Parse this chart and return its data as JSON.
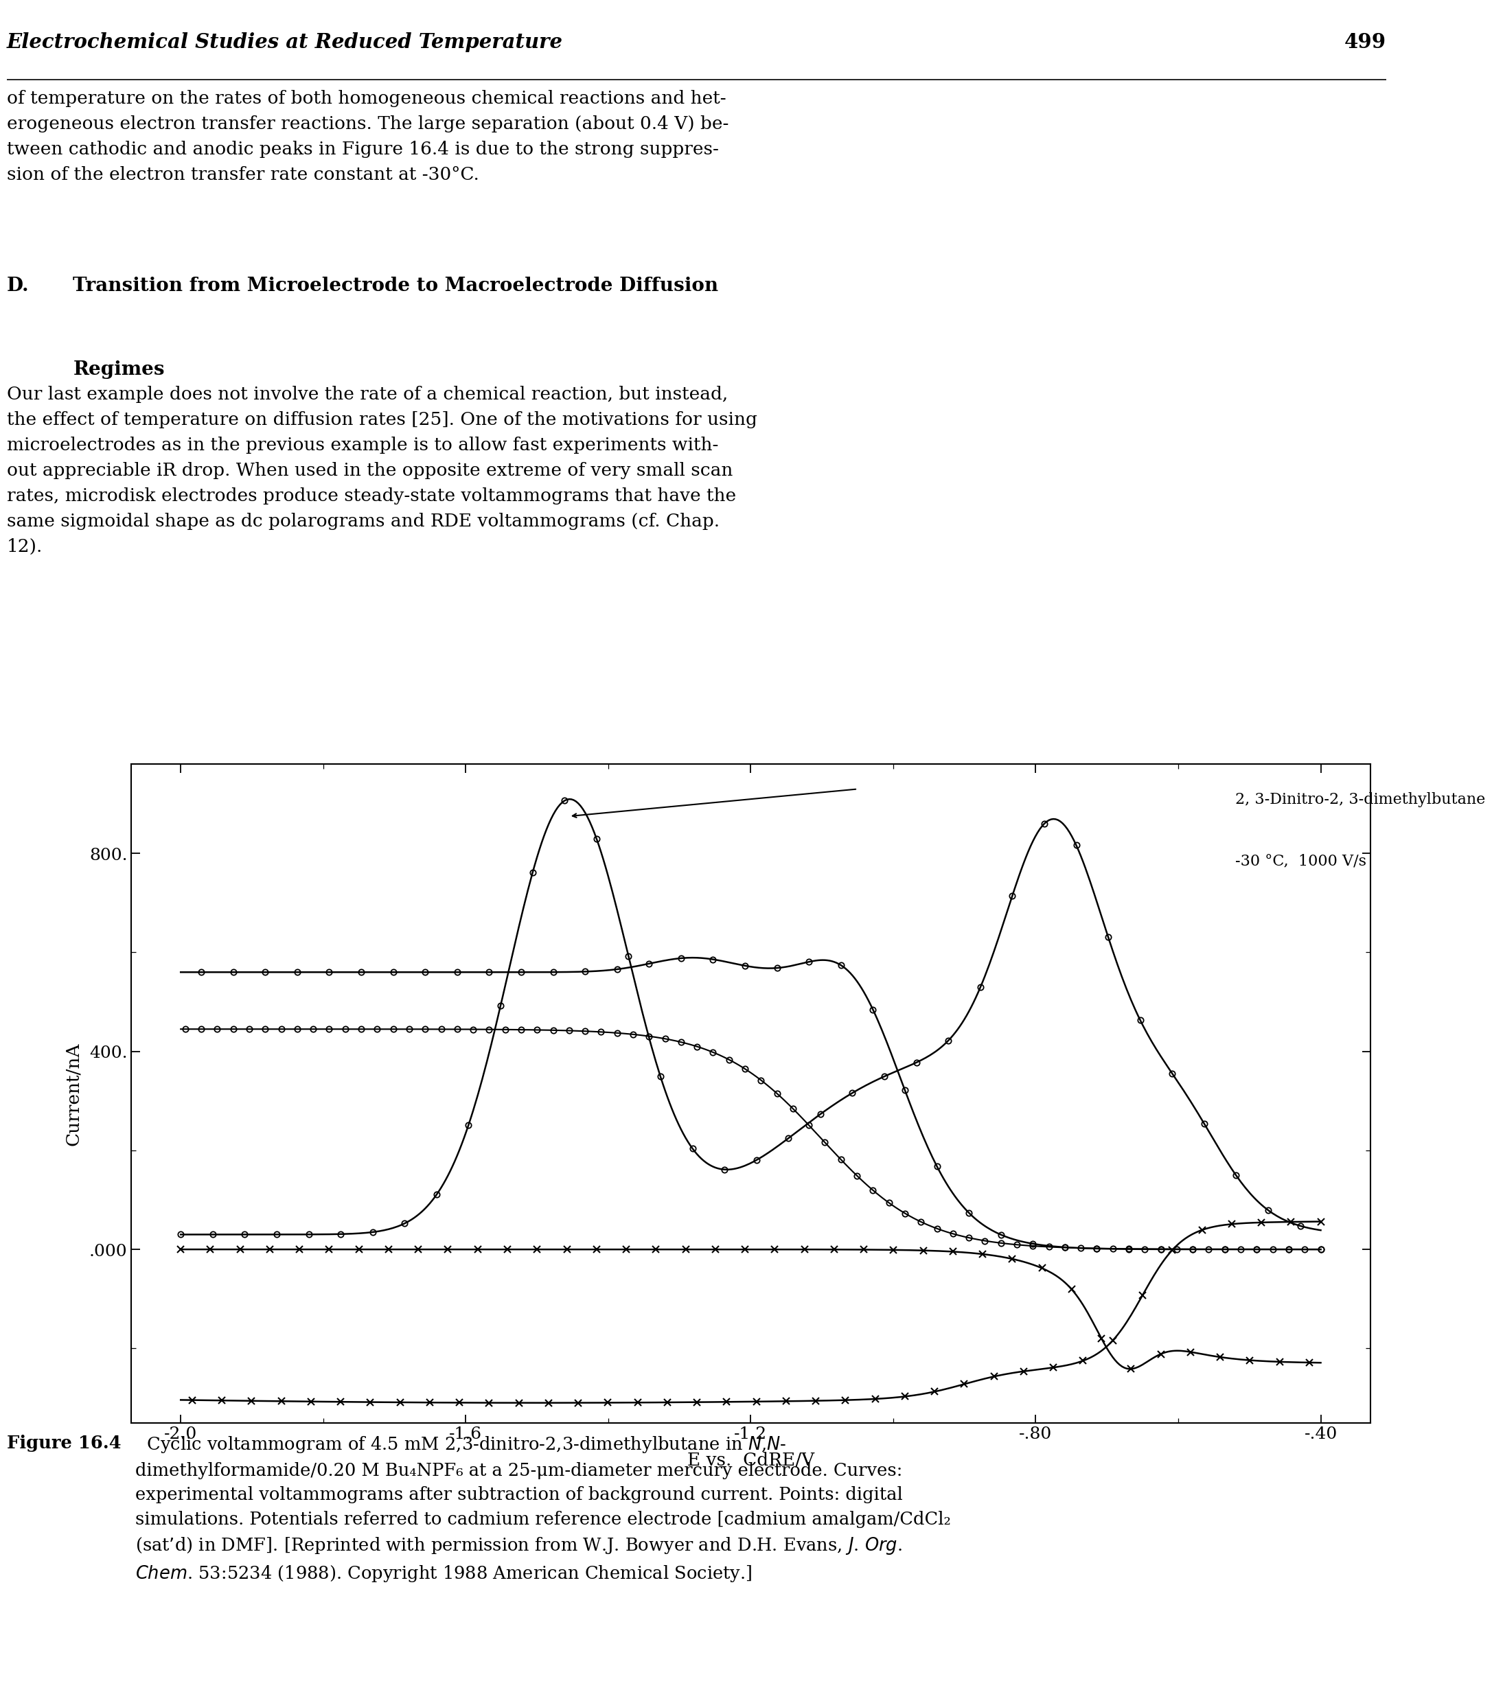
{
  "page_title": "Electrochemical Studies at Reduced Temperature",
  "page_number": "499",
  "para0": "of temperature on the rates of both homogeneous chemical reactions and het-\nerogeneous electron transfer reactions. The large separation (about 0.4 V) be-\ntween cathodic and anodic peaks in Figure 16.4 is due to the strong suppres-\nsion of the electron transfer rate constant at -30°C.",
  "section_d": "D.",
  "section_title1": "Transition from Microelectrode to Macroelectrode Diffusion",
  "section_title2": "Regimes",
  "body": "Our last example does not involve the rate of a chemical reaction, but instead,\nthe effect of temperature on diffusion rates [25]. One of the motivations for using\nmicroelectrodes as in the previous example is to allow fast experiments with-\nout appreciable iR drop. When used in the opposite extreme of very small scan\nrates, microdisk electrodes produce steady-state voltammograms that have the\nsame sigmoidal shape as dc polarograms and RDE voltammograms (cf. Chap.\n12).",
  "annot_title": "2, 3-Dinitro-2, 3-dimethylbutane",
  "annot_cond": "-30 °C,  1000 V/s",
  "xlabel": "E vs.  CdRE/V",
  "ylabel": "Current/nA",
  "x_ticks": [
    -0.4,
    -0.8,
    -1.2,
    -1.6,
    -2.0
  ],
  "x_tick_labels": [
    "-.40",
    "-.80",
    "-1.2",
    "-1.6",
    "-2.0"
  ],
  "y_ticks": [
    0,
    400,
    800
  ],
  "y_tick_labels": [
    ".000",
    "400.",
    "800."
  ],
  "xlim": [
    -0.33,
    -2.07
  ],
  "ylim": [
    -350,
    980
  ],
  "caption_bold": "Figure 16.4",
  "caption_text": "  Cyclic voltammogram of 4.5 mM 2,3-dinitro-2,3-dimethylbutane in N,N-dimethylformamide/0.20 M Bu₄NPF₆ at a 25-μm-diameter mercury electrode. Curves: experimental voltammograms after subtraction of background current. Points: digital simulations. Potentials referred to cadmium reference electrode [cadmium amalgam/CdCl₂ (sat’d) in DMF]. [Reprinted with permission from W.J. Bowyer and D.H. Evans, J. Org. Chem. 53:5234 (1988). Copyright 1988 American Chemical Society.]",
  "bg_color": "#ffffff"
}
